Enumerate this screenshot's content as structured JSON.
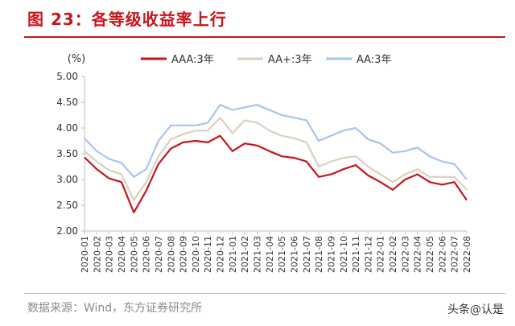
{
  "figure": {
    "title": "图 23：各等级收益率上行",
    "source": "数据来源：Wind，东方证券研究所",
    "watermark": "头条@认是"
  },
  "colors": {
    "accent": "#c8151b",
    "aaa": "#c8151b",
    "aa_plus": "#dcd0bc",
    "aa": "#a9c4ec"
  },
  "chart_data": {
    "type": "line",
    "title": "",
    "ylabel": "(%)",
    "xlabel": "",
    "ylim": [
      2.0,
      5.0
    ],
    "yticks": [
      "5.00",
      "4.50",
      "4.00",
      "3.50",
      "3.00",
      "2.50",
      "2.00"
    ],
    "grid": false,
    "legend": "top",
    "categories": [
      "2020-01",
      "2020-02",
      "2020-03",
      "2020-04",
      "2020-05",
      "2020-06",
      "2020-07",
      "2020-08",
      "2020-09",
      "2020-10",
      "2020-11",
      "2020-12",
      "2021-01",
      "2021-02",
      "2021-03",
      "2021-04",
      "2021-05",
      "2021-06",
      "2021-07",
      "2021-08",
      "2021-09",
      "2021-10",
      "2021-11",
      "2021-12",
      "2022-01",
      "2022-02",
      "2022-03",
      "2022-04",
      "2022-05",
      "2022-06",
      "2022-07",
      "2022-08"
    ],
    "series": [
      {
        "name": "AAA:3年",
        "color": "#c8151b",
        "values": [
          3.43,
          3.2,
          3.02,
          2.95,
          2.36,
          2.78,
          3.3,
          3.6,
          3.72,
          3.75,
          3.72,
          3.85,
          3.55,
          3.7,
          3.66,
          3.55,
          3.45,
          3.42,
          3.35,
          3.05,
          3.1,
          3.2,
          3.28,
          3.08,
          2.95,
          2.8,
          3.0,
          3.1,
          2.95,
          2.9,
          2.95,
          2.6
        ]
      },
      {
        "name": "AA+:3年",
        "color": "#dcd0bc",
        "values": [
          3.55,
          3.35,
          3.18,
          3.1,
          2.6,
          2.95,
          3.45,
          3.78,
          3.88,
          3.95,
          3.95,
          4.2,
          3.9,
          4.15,
          4.1,
          3.95,
          3.85,
          3.8,
          3.72,
          3.25,
          3.35,
          3.42,
          3.45,
          3.25,
          3.1,
          2.95,
          3.1,
          3.2,
          3.05,
          3.05,
          3.05,
          2.8
        ]
      },
      {
        "name": "AA:3年",
        "color": "#a9c4ec",
        "values": [
          3.8,
          3.55,
          3.4,
          3.32,
          3.05,
          3.2,
          3.75,
          4.05,
          4.05,
          4.05,
          4.1,
          4.45,
          4.35,
          4.4,
          4.45,
          4.35,
          4.25,
          4.2,
          4.15,
          3.75,
          3.85,
          3.95,
          4.0,
          3.78,
          3.7,
          3.52,
          3.55,
          3.62,
          3.45,
          3.35,
          3.3,
          3.0
        ]
      }
    ]
  }
}
